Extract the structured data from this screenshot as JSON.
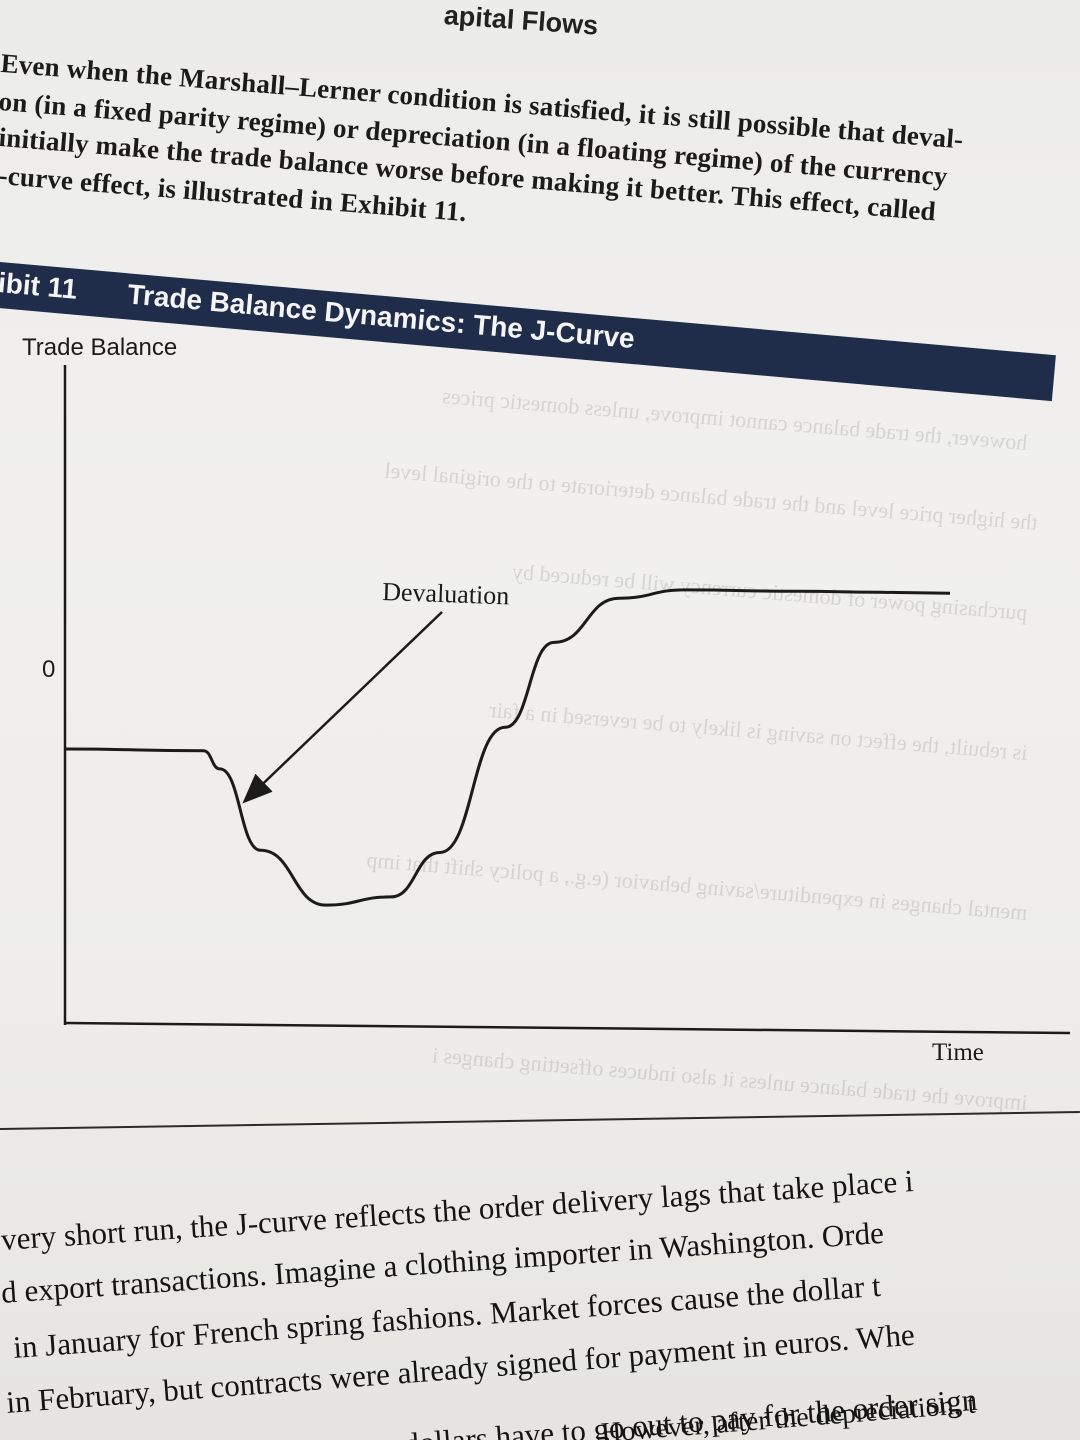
{
  "running_head": "apital Flows",
  "intro_lines": [
    "Even when the Marshall–Lerner condition is satisfied, it is still possible that deval-",
    "on (in a fixed parity regime) or depreciation (in a floating regime) of the currency",
    "initially make the trade balance worse before making it better. This effect, called",
    "-curve effect, is illustrated in Exhibit 11."
  ],
  "exhibit": {
    "number": "ibit 11",
    "title": "Trade Balance Dynamics: The J-Curve"
  },
  "chart_data": {
    "type": "line",
    "title": "Trade Balance Dynamics: The J-Curve",
    "ylabel": "Trade Balance",
    "xlabel": "Time",
    "zero_label": "0",
    "annotation": "Devaluation",
    "series": [
      {
        "x": [
          0,
          0.17,
          0.19,
          0.24,
          0.32,
          0.4,
          0.46,
          0.54,
          0.6,
          0.68,
          0.76,
          0.9,
          1.0
        ],
        "values": [
          -0.9,
          -0.9,
          -1.1,
          -2.0,
          -2.6,
          -2.5,
          -2.0,
          -0.6,
          0.35,
          0.85,
          0.95,
          0.95,
          0.95
        ]
      }
    ],
    "ylim": [
      -4,
      3
    ],
    "xlim": [
      0,
      1
    ]
  },
  "body_lines": [
    "very short run, the J-curve reflects the order delivery lags that take place i",
    "d export transactions. Imagine a clothing importer in Washington. Orde",
    "in January for French spring fashions. Market forces cause the dollar t",
    "in February, but contracts were already signed for payment in euros. Whe",
    "March, more dollars have to go out to pay for the order sign",
    "However, after the depreciation, t"
  ]
}
